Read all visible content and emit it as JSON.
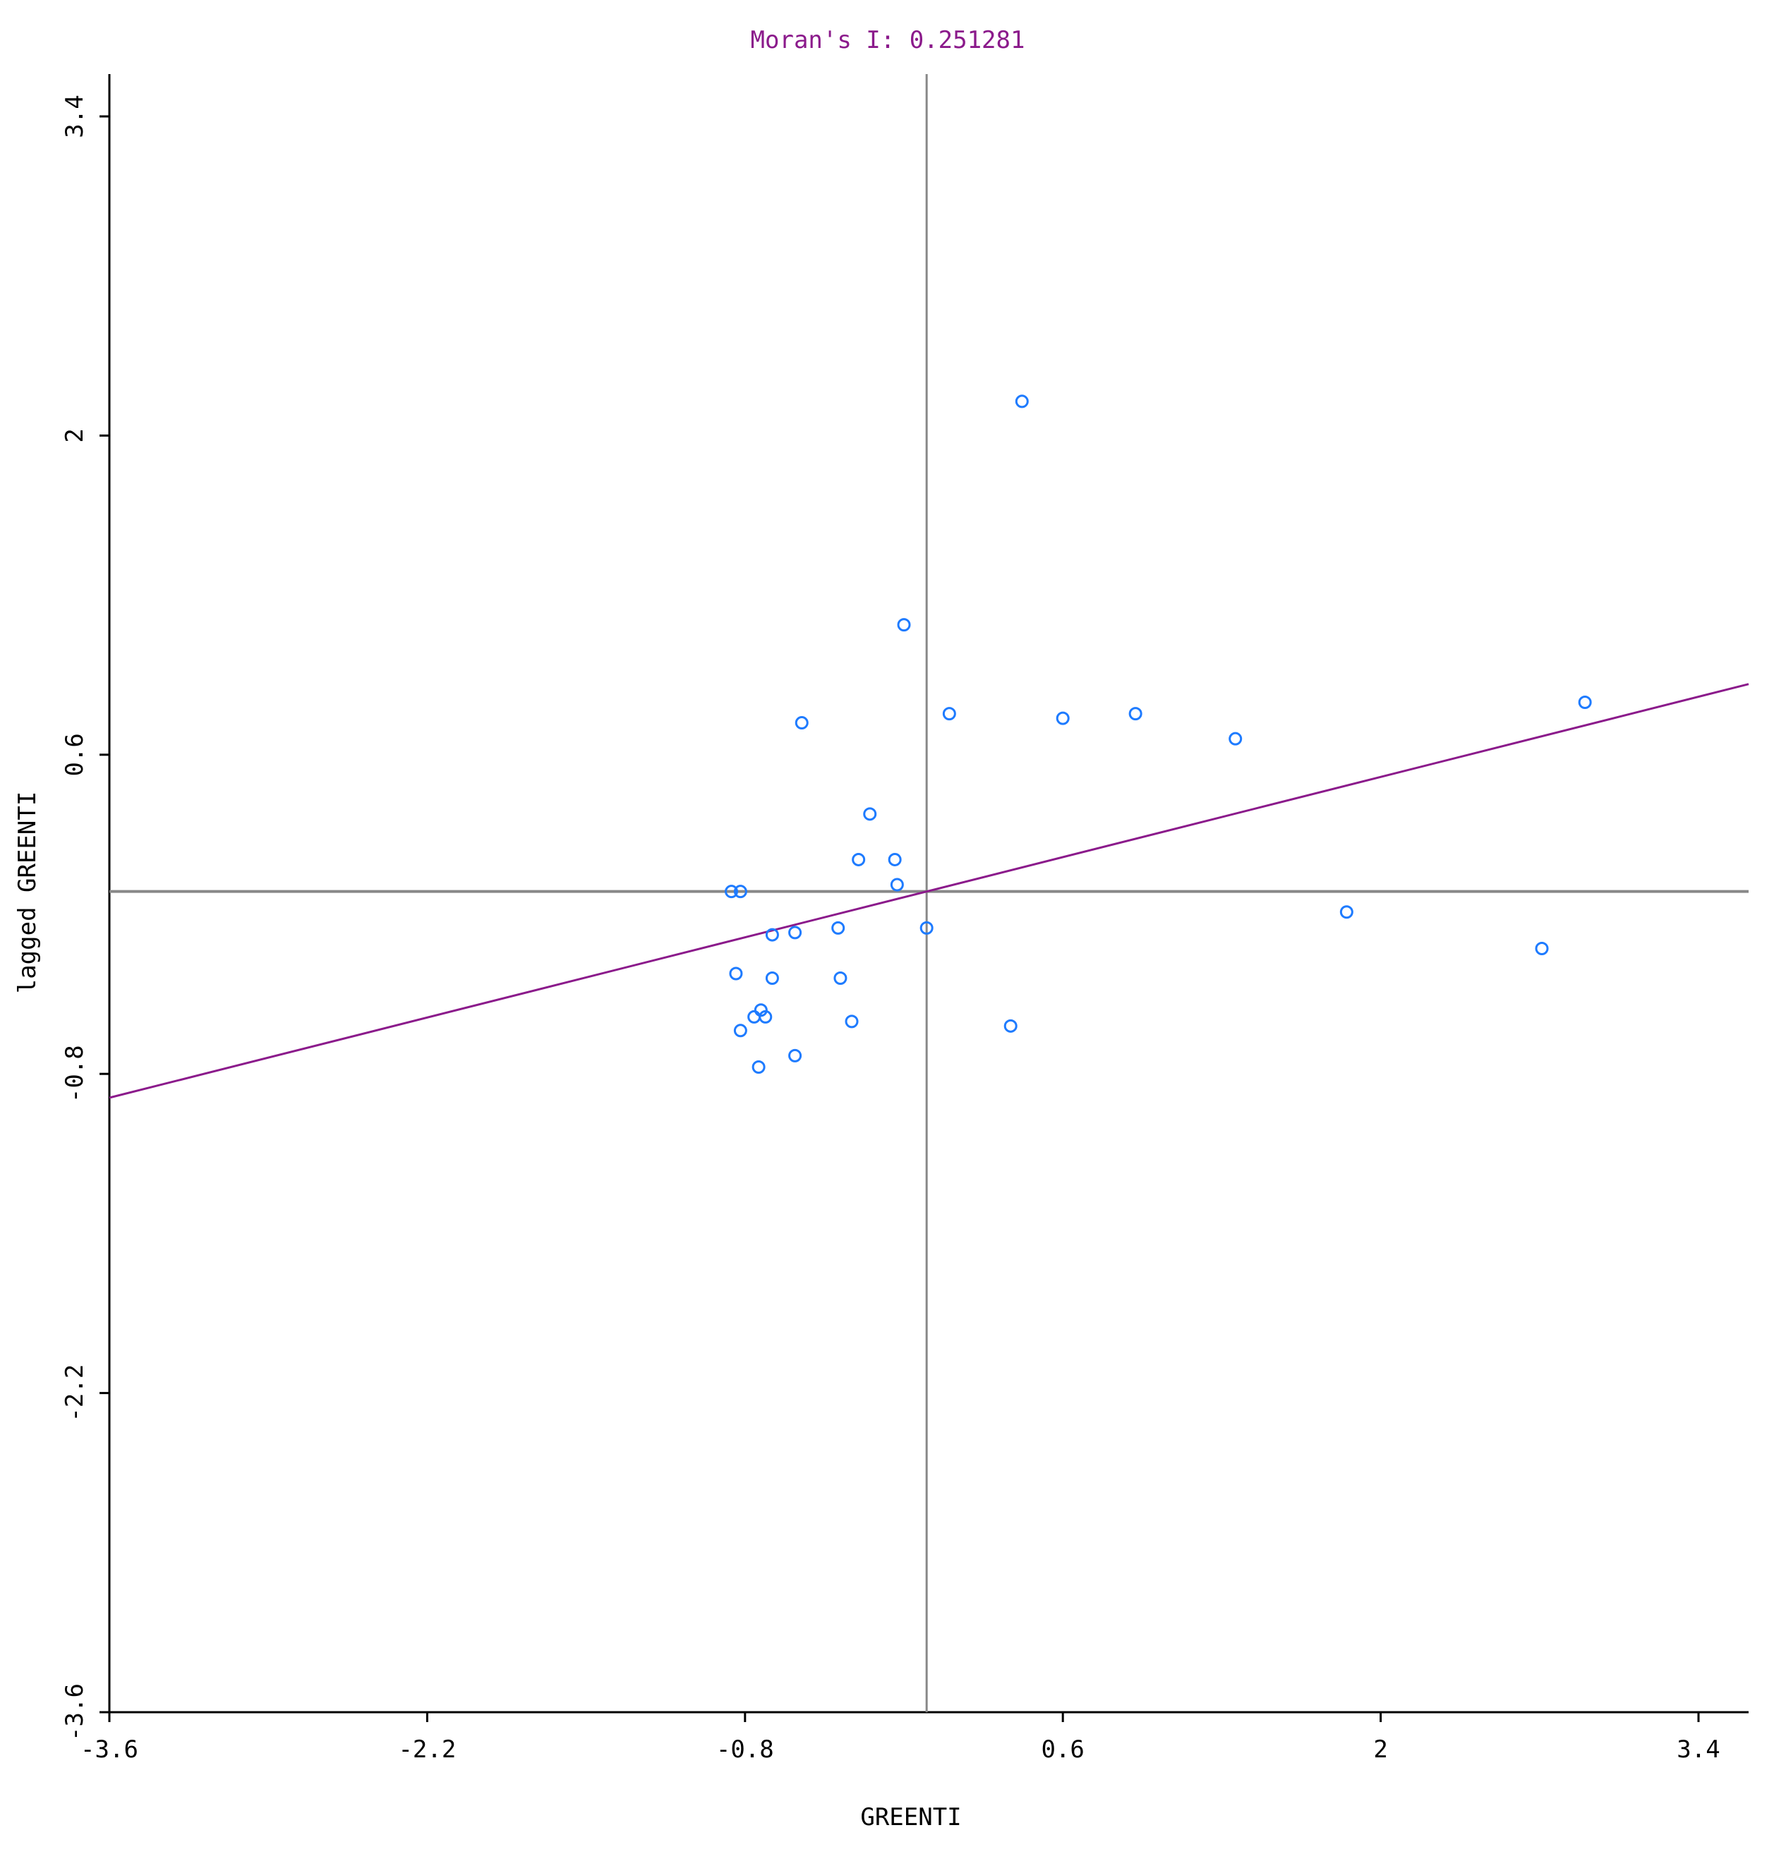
{
  "chart_data": {
    "type": "scatter",
    "title": "Moran's I: 0.251281",
    "xlabel": "GREENTI",
    "ylabel": "lagged GREENTI",
    "xlim": [
      -3.6,
      3.6
    ],
    "ylim": [
      -3.6,
      3.6
    ],
    "x_ticks": [
      -3.6,
      -2.2,
      -0.8,
      0.6,
      2,
      3.4
    ],
    "x_tick_labels": [
      "-3.6",
      "-2.2",
      "-0.8",
      "0.6",
      "2",
      "3.4"
    ],
    "y_ticks": [
      -3.6,
      -2.2,
      -0.8,
      0.6,
      2,
      3.4
    ],
    "y_tick_labels": [
      "-3.6",
      "-2.2",
      "-0.8",
      "0.6",
      "2",
      "3.4"
    ],
    "grid": false,
    "reference_lines": {
      "x": 0,
      "y": 0
    },
    "regression_line": {
      "slope": 0.251281,
      "intercept": 0.0
    },
    "points": [
      {
        "x": 0.42,
        "y": 2.15
      },
      {
        "x": -0.1,
        "y": 1.17
      },
      {
        "x": -0.55,
        "y": 0.74
      },
      {
        "x": 0.1,
        "y": 0.78
      },
      {
        "x": 0.6,
        "y": 0.76
      },
      {
        "x": 0.92,
        "y": 0.78
      },
      {
        "x": 1.36,
        "y": 0.67
      },
      {
        "x": 2.9,
        "y": 0.83
      },
      {
        "x": -0.25,
        "y": 0.34
      },
      {
        "x": -0.3,
        "y": 0.14
      },
      {
        "x": -0.14,
        "y": 0.14
      },
      {
        "x": -0.13,
        "y": 0.03
      },
      {
        "x": -0.86,
        "y": 0.0
      },
      {
        "x": -0.82,
        "y": 0.0
      },
      {
        "x": 1.85,
        "y": -0.09
      },
      {
        "x": 2.71,
        "y": -0.25
      },
      {
        "x": 0.0,
        "y": -0.16
      },
      {
        "x": -0.39,
        "y": -0.16
      },
      {
        "x": -0.58,
        "y": -0.18
      },
      {
        "x": -0.68,
        "y": -0.19
      },
      {
        "x": -0.84,
        "y": -0.36
      },
      {
        "x": -0.68,
        "y": -0.38
      },
      {
        "x": -0.38,
        "y": -0.38
      },
      {
        "x": -0.73,
        "y": -0.52
      },
      {
        "x": -0.71,
        "y": -0.55
      },
      {
        "x": -0.76,
        "y": -0.55
      },
      {
        "x": -0.82,
        "y": -0.61
      },
      {
        "x": -0.33,
        "y": -0.57
      },
      {
        "x": 0.37,
        "y": -0.59
      },
      {
        "x": -0.58,
        "y": -0.72
      },
      {
        "x": -0.74,
        "y": -0.77
      }
    ],
    "colors": {
      "title": "#8B1A8B",
      "regression": "#8B1A8B",
      "points": "#1E7BFF",
      "axes": "#000000",
      "reference": "#888888"
    }
  }
}
